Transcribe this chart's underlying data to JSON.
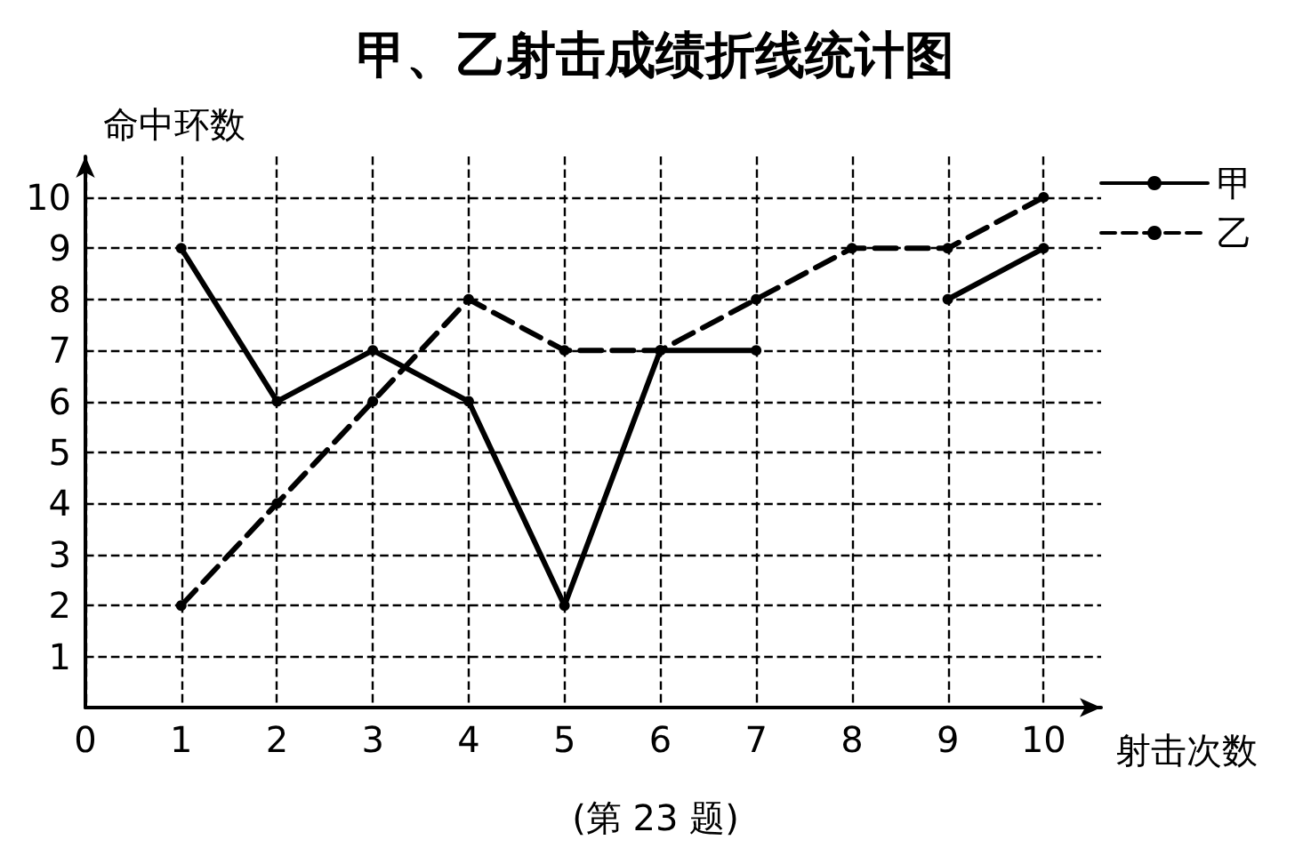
{
  "chart_data": {
    "type": "line",
    "title": "甲、乙射击成绩折线统计图",
    "xlabel": "射击次数",
    "ylabel": "命中环数",
    "annotations": [
      "(第 23 题)"
    ],
    "x": [
      1,
      2,
      3,
      4,
      5,
      6,
      7,
      8,
      9,
      10
    ],
    "series": [
      {
        "name": "甲",
        "color": "#000000",
        "line_style": "solid",
        "values": [
          9,
          6,
          7,
          6,
          2,
          7,
          7,
          null,
          8,
          9
        ]
      },
      {
        "name": "乙",
        "color": "#000000",
        "line_style": "dashed",
        "values": [
          2,
          4,
          6,
          8,
          7,
          7,
          8,
          9,
          9,
          10
        ]
      }
    ],
    "xlim": [
      0,
      10.6
    ],
    "xticks": [
      0,
      1,
      2,
      3,
      4,
      5,
      6,
      7,
      8,
      9,
      10
    ],
    "ylim": [
      0,
      10.8
    ],
    "yticks": [
      1,
      2,
      3,
      4,
      5,
      6,
      7,
      8,
      9,
      10
    ],
    "grid": true,
    "legend": "top right",
    "marker": "circle"
  }
}
